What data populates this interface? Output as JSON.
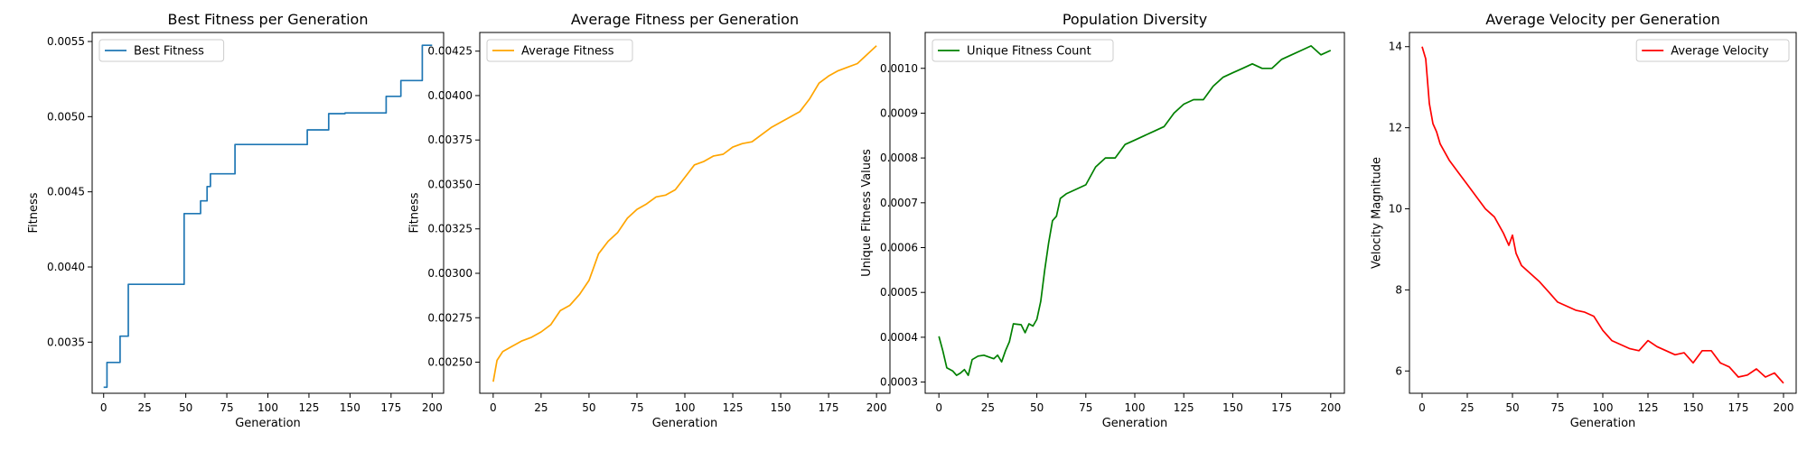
{
  "chart_data": [
    {
      "type": "line",
      "title": "Best Fitness per Generation",
      "xlabel": "Generation",
      "ylabel": "Fitness",
      "xlim": [
        -7,
        207
      ],
      "ylim": [
        0.00316,
        0.00556
      ],
      "xticks": [
        0,
        25,
        50,
        75,
        100,
        125,
        150,
        175,
        200
      ],
      "yticks": [
        0.0035,
        0.004,
        0.0045,
        0.005,
        0.0055
      ],
      "ytick_labels": [
        "0.0035",
        "0.0040",
        "0.0045",
        "0.0050",
        "0.0055"
      ],
      "legend_position": "upper-left",
      "grid": false,
      "series": [
        {
          "name": "Best Fitness",
          "color": "#1f77b4",
          "step": true,
          "points": [
            [
              0,
              0.0032
            ],
            [
              2,
              0.003365
            ],
            [
              10,
              0.00354
            ],
            [
              15,
              0.003885
            ],
            [
              49,
              0.004355
            ],
            [
              59,
              0.00444
            ],
            [
              63,
              0.004535
            ],
            [
              65,
              0.00462
            ],
            [
              80,
              0.004815
            ],
            [
              124,
              0.004912
            ],
            [
              137,
              0.00502
            ],
            [
              147,
              0.005025
            ],
            [
              172,
              0.005135
            ],
            [
              181,
              0.00524
            ],
            [
              194,
              0.005475
            ],
            [
              200,
              0.005475
            ]
          ]
        }
      ]
    },
    {
      "type": "line",
      "title": "Average Fitness per Generation",
      "xlabel": "Generation",
      "ylabel": "Fitness",
      "xlim": [
        -7,
        207
      ],
      "ylim": [
        0.002325,
        0.004355
      ],
      "xticks": [
        0,
        25,
        50,
        75,
        100,
        125,
        150,
        175,
        200
      ],
      "yticks": [
        0.0025,
        0.00275,
        0.003,
        0.00325,
        0.0035,
        0.00375,
        0.004,
        0.00425
      ],
      "ytick_labels": [
        "0.00250",
        "0.00275",
        "0.00300",
        "0.00325",
        "0.00350",
        "0.00375",
        "0.00400",
        "0.00425"
      ],
      "legend_position": "upper-left",
      "grid": false,
      "series": [
        {
          "name": "Average Fitness",
          "color": "#ffa500",
          "points": [
            [
              0,
              0.00239
            ],
            [
              2,
              0.00251
            ],
            [
              5,
              0.00256
            ],
            [
              10,
              0.00259
            ],
            [
              15,
              0.00262
            ],
            [
              20,
              0.00264
            ],
            [
              25,
              0.00267
            ],
            [
              30,
              0.00271
            ],
            [
              35,
              0.00279
            ],
            [
              40,
              0.00282
            ],
            [
              45,
              0.00288
            ],
            [
              50,
              0.00296
            ],
            [
              52,
              0.00302
            ],
            [
              55,
              0.00311
            ],
            [
              60,
              0.00318
            ],
            [
              65,
              0.00323
            ],
            [
              70,
              0.00331
            ],
            [
              75,
              0.00336
            ],
            [
              80,
              0.00339
            ],
            [
              85,
              0.00343
            ],
            [
              90,
              0.00344
            ],
            [
              95,
              0.00347
            ],
            [
              100,
              0.00354
            ],
            [
              105,
              0.00361
            ],
            [
              110,
              0.00363
            ],
            [
              115,
              0.00366
            ],
            [
              120,
              0.00367
            ],
            [
              125,
              0.00371
            ],
            [
              130,
              0.00373
            ],
            [
              135,
              0.00374
            ],
            [
              140,
              0.00378
            ],
            [
              145,
              0.00382
            ],
            [
              150,
              0.00385
            ],
            [
              155,
              0.00388
            ],
            [
              160,
              0.00391
            ],
            [
              165,
              0.00398
            ],
            [
              170,
              0.00407
            ],
            [
              175,
              0.00411
            ],
            [
              180,
              0.00414
            ],
            [
              185,
              0.00416
            ],
            [
              190,
              0.00418
            ],
            [
              195,
              0.00423
            ],
            [
              200,
              0.00428
            ]
          ]
        }
      ]
    },
    {
      "type": "line",
      "title": "Population Diversity",
      "xlabel": "Generation",
      "ylabel": "Unique Fitness Values",
      "xlim": [
        -7,
        207
      ],
      "ylim": [
        0.000275,
        0.00108
      ],
      "xticks": [
        0,
        25,
        50,
        75,
        100,
        125,
        150,
        175,
        200
      ],
      "yticks": [
        0.0003,
        0.0004,
        0.0005,
        0.0006,
        0.0007,
        0.0008,
        0.0009,
        0.001
      ],
      "ytick_labels": [
        "0.0003",
        "0.0004",
        "0.0005",
        "0.0006",
        "0.0007",
        "0.0008",
        "0.0009",
        "0.0010"
      ],
      "legend_position": "upper-left",
      "grid": false,
      "series": [
        {
          "name": "Unique Fitness Count",
          "color": "#008000",
          "points": [
            [
              0,
              0.000402
            ],
            [
              2,
              0.00037
            ],
            [
              4,
              0.000332
            ],
            [
              7,
              0.000325
            ],
            [
              9,
              0.000315
            ],
            [
              11,
              0.00032
            ],
            [
              13,
              0.000328
            ],
            [
              15,
              0.000315
            ],
            [
              17,
              0.00035
            ],
            [
              20,
              0.000358
            ],
            [
              23,
              0.00036
            ],
            [
              26,
              0.000355
            ],
            [
              28,
              0.000352
            ],
            [
              30,
              0.00036
            ],
            [
              32,
              0.000345
            ],
            [
              34,
              0.00037
            ],
            [
              36,
              0.00039
            ],
            [
              38,
              0.00043
            ],
            [
              42,
              0.000428
            ],
            [
              44,
              0.00041
            ],
            [
              46,
              0.00043
            ],
            [
              48,
              0.000425
            ],
            [
              50,
              0.00044
            ],
            [
              52,
              0.00048
            ],
            [
              54,
              0.00055
            ],
            [
              56,
              0.00061
            ],
            [
              58,
              0.00066
            ],
            [
              60,
              0.00067
            ],
            [
              62,
              0.00071
            ],
            [
              65,
              0.00072
            ],
            [
              70,
              0.00073
            ],
            [
              75,
              0.00074
            ],
            [
              80,
              0.00078
            ],
            [
              85,
              0.0008
            ],
            [
              90,
              0.0008
            ],
            [
              95,
              0.00083
            ],
            [
              100,
              0.00084
            ],
            [
              105,
              0.00085
            ],
            [
              110,
              0.00086
            ],
            [
              115,
              0.00087
            ],
            [
              120,
              0.0009
            ],
            [
              125,
              0.00092
            ],
            [
              130,
              0.00093
            ],
            [
              135,
              0.00093
            ],
            [
              140,
              0.00096
            ],
            [
              145,
              0.00098
            ],
            [
              150,
              0.00099
            ],
            [
              155,
              0.001
            ],
            [
              160,
              0.00101
            ],
            [
              165,
              0.001
            ],
            [
              170,
              0.001
            ],
            [
              175,
              0.00102
            ],
            [
              180,
              0.00103
            ],
            [
              185,
              0.00104
            ],
            [
              190,
              0.00105
            ],
            [
              195,
              0.00103
            ],
            [
              200,
              0.00104
            ]
          ]
        }
      ]
    },
    {
      "type": "line",
      "title": "Average Velocity per Generation",
      "xlabel": "Generation",
      "ylabel": "Velocity Magnitude",
      "xlim": [
        -7,
        207
      ],
      "ylim": [
        5.45,
        14.35
      ],
      "xticks": [
        0,
        25,
        50,
        75,
        100,
        125,
        150,
        175,
        200
      ],
      "yticks": [
        6,
        8,
        10,
        12,
        14
      ],
      "ytick_labels": [
        "6",
        "8",
        "10",
        "12",
        "14"
      ],
      "legend_position": "upper-right",
      "grid": false,
      "series": [
        {
          "name": "Average Velocity",
          "color": "#ff0000",
          "points": [
            [
              0,
              14
            ],
            [
              2,
              13.7
            ],
            [
              4,
              12.6
            ],
            [
              6,
              12.1
            ],
            [
              8,
              11.9
            ],
            [
              10,
              11.6
            ],
            [
              15,
              11.2
            ],
            [
              20,
              10.9
            ],
            [
              25,
              10.6
            ],
            [
              30,
              10.3
            ],
            [
              35,
              10
            ],
            [
              40,
              9.8
            ],
            [
              45,
              9.4
            ],
            [
              48,
              9.1
            ],
            [
              50,
              9.35
            ],
            [
              52,
              8.9
            ],
            [
              55,
              8.6
            ],
            [
              60,
              8.4
            ],
            [
              65,
              8.2
            ],
            [
              70,
              7.95
            ],
            [
              75,
              7.7
            ],
            [
              80,
              7.6
            ],
            [
              85,
              7.5
            ],
            [
              90,
              7.45
            ],
            [
              95,
              7.35
            ],
            [
              100,
              7
            ],
            [
              105,
              6.75
            ],
            [
              110,
              6.65
            ],
            [
              115,
              6.55
            ],
            [
              120,
              6.5
            ],
            [
              125,
              6.75
            ],
            [
              130,
              6.6
            ],
            [
              135,
              6.5
            ],
            [
              140,
              6.4
            ],
            [
              145,
              6.45
            ],
            [
              150,
              6.2
            ],
            [
              155,
              6.5
            ],
            [
              160,
              6.5
            ],
            [
              165,
              6.2
            ],
            [
              170,
              6.1
            ],
            [
              175,
              5.85
            ],
            [
              180,
              5.9
            ],
            [
              185,
              6.05
            ],
            [
              190,
              5.85
            ],
            [
              195,
              5.95
            ],
            [
              200,
              5.7
            ]
          ]
        }
      ]
    }
  ]
}
